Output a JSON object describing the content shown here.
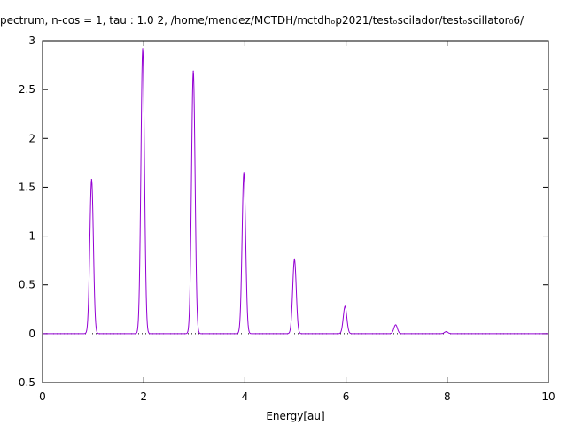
{
  "chart_data": {
    "type": "line",
    "title": "pectrum,  n-cos = 1, tau :      1.0  2,   /home/mendez/MCTDH/mctdhₒp2021/testₒscilador/testₒscillator₀6/",
    "xlabel": "Energy[au]",
    "ylabel": "",
    "xlim": [
      0,
      10
    ],
    "ylim": [
      -0.5,
      3
    ],
    "x_ticks": [
      "0",
      "2",
      "4",
      "6",
      "8",
      "10"
    ],
    "y_ticks": [
      "-0.5",
      "0",
      "0.5",
      "1",
      "1.5",
      "2",
      "2.5",
      "3"
    ],
    "grid": false,
    "series": [
      {
        "color": "#9400d3",
        "peak_width": 0.035,
        "peaks": [
          {
            "x": 0.97,
            "y": 1.58
          },
          {
            "x": 1.98,
            "y": 2.92
          },
          {
            "x": 2.98,
            "y": 2.69
          },
          {
            "x": 3.98,
            "y": 1.65
          },
          {
            "x": 4.98,
            "y": 0.76
          },
          {
            "x": 5.98,
            "y": 0.28
          },
          {
            "x": 6.98,
            "y": 0.09
          },
          {
            "x": 7.98,
            "y": 0.02
          }
        ]
      }
    ],
    "reference_line": {
      "y": 0,
      "style": "dotted",
      "color": "#000000"
    }
  }
}
